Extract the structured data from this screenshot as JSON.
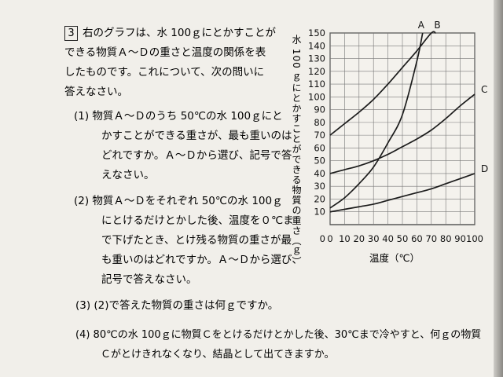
{
  "question_number": "3",
  "intro": [
    "右のグラフは、水 100ｇにとかすことが",
    "できる物質Ａ～Ｄの重さと温度の関係を表",
    "したものです。これについて、次の問いに",
    "答えなさい。"
  ],
  "q1": [
    "(1)  物質Ａ～Ｄのうち 50℃の水 100ｇにと",
    "かすことができる重さが、最も重いのは",
    "どれですか。Ａ～Ｄから選び、記号で答",
    "えなさい。"
  ],
  "q2": [
    "(2)  物質Ａ～Ｄをそれぞれ 50℃の水 100ｇ",
    "にとけるだけとかした後、温度を０℃ま",
    "で下げたとき、とけ残る物質の重さが最",
    "も重いのはどれですか。Ａ～Ｄから選び、",
    "記号で答えなさい。"
  ],
  "q3": "(3)   (2)で答えた物質の重さは何ｇですか。",
  "q4": [
    "(4)   80℃の水  100ｇに物質Ｃをとけるだけとかした後、30℃まで冷やすと、何ｇの物質",
    "Ｃがとけきれなくなり、結晶として出てきますか。"
  ],
  "chart_data": {
    "type": "line",
    "xlabel": "温度（℃）",
    "ylabel": "水 100 ｇにとかすことができる物質の重さ（ｇ）",
    "xlim": [
      0,
      100
    ],
    "ylim": [
      0,
      150
    ],
    "x_ticks": [
      0,
      10,
      20,
      30,
      40,
      50,
      60,
      70,
      80,
      90,
      100
    ],
    "y_ticks": [
      10,
      20,
      30,
      40,
      50,
      60,
      70,
      80,
      90,
      100,
      110,
      120,
      130,
      140,
      150
    ],
    "x_tick_labels": [
      "0",
      "10",
      "20",
      "30",
      "40",
      "50",
      "60",
      "70",
      "80",
      "90",
      "100"
    ],
    "y_tick_labels": [
      "10",
      "20",
      "30",
      "40",
      "50",
      "60",
      "70",
      "80",
      "90",
      "100",
      "110",
      "120",
      "130",
      "140",
      "150"
    ],
    "grid": true,
    "series": [
      {
        "name": "A",
        "x": [
          0,
          10,
          20,
          30,
          40,
          50,
          60,
          64
        ],
        "y": [
          13,
          21,
          32,
          45,
          64,
          86,
          128,
          150
        ]
      },
      {
        "name": "B",
        "x": [
          0,
          10,
          20,
          30,
          40,
          50,
          60,
          70,
          73
        ],
        "y": [
          70,
          79,
          88,
          98,
          110,
          123,
          136,
          150,
          150
        ]
      },
      {
        "name": "C",
        "x": [
          0,
          10,
          20,
          30,
          40,
          50,
          60,
          70,
          80,
          90,
          100
        ],
        "y": [
          40,
          43,
          46,
          50,
          55,
          61,
          67,
          74,
          83,
          93,
          102
        ]
      },
      {
        "name": "D",
        "x": [
          0,
          10,
          20,
          30,
          40,
          50,
          60,
          70,
          80,
          90,
          100
        ],
        "y": [
          10,
          12,
          14,
          16,
          19,
          22,
          25,
          28,
          32,
          36,
          40
        ]
      }
    ]
  }
}
